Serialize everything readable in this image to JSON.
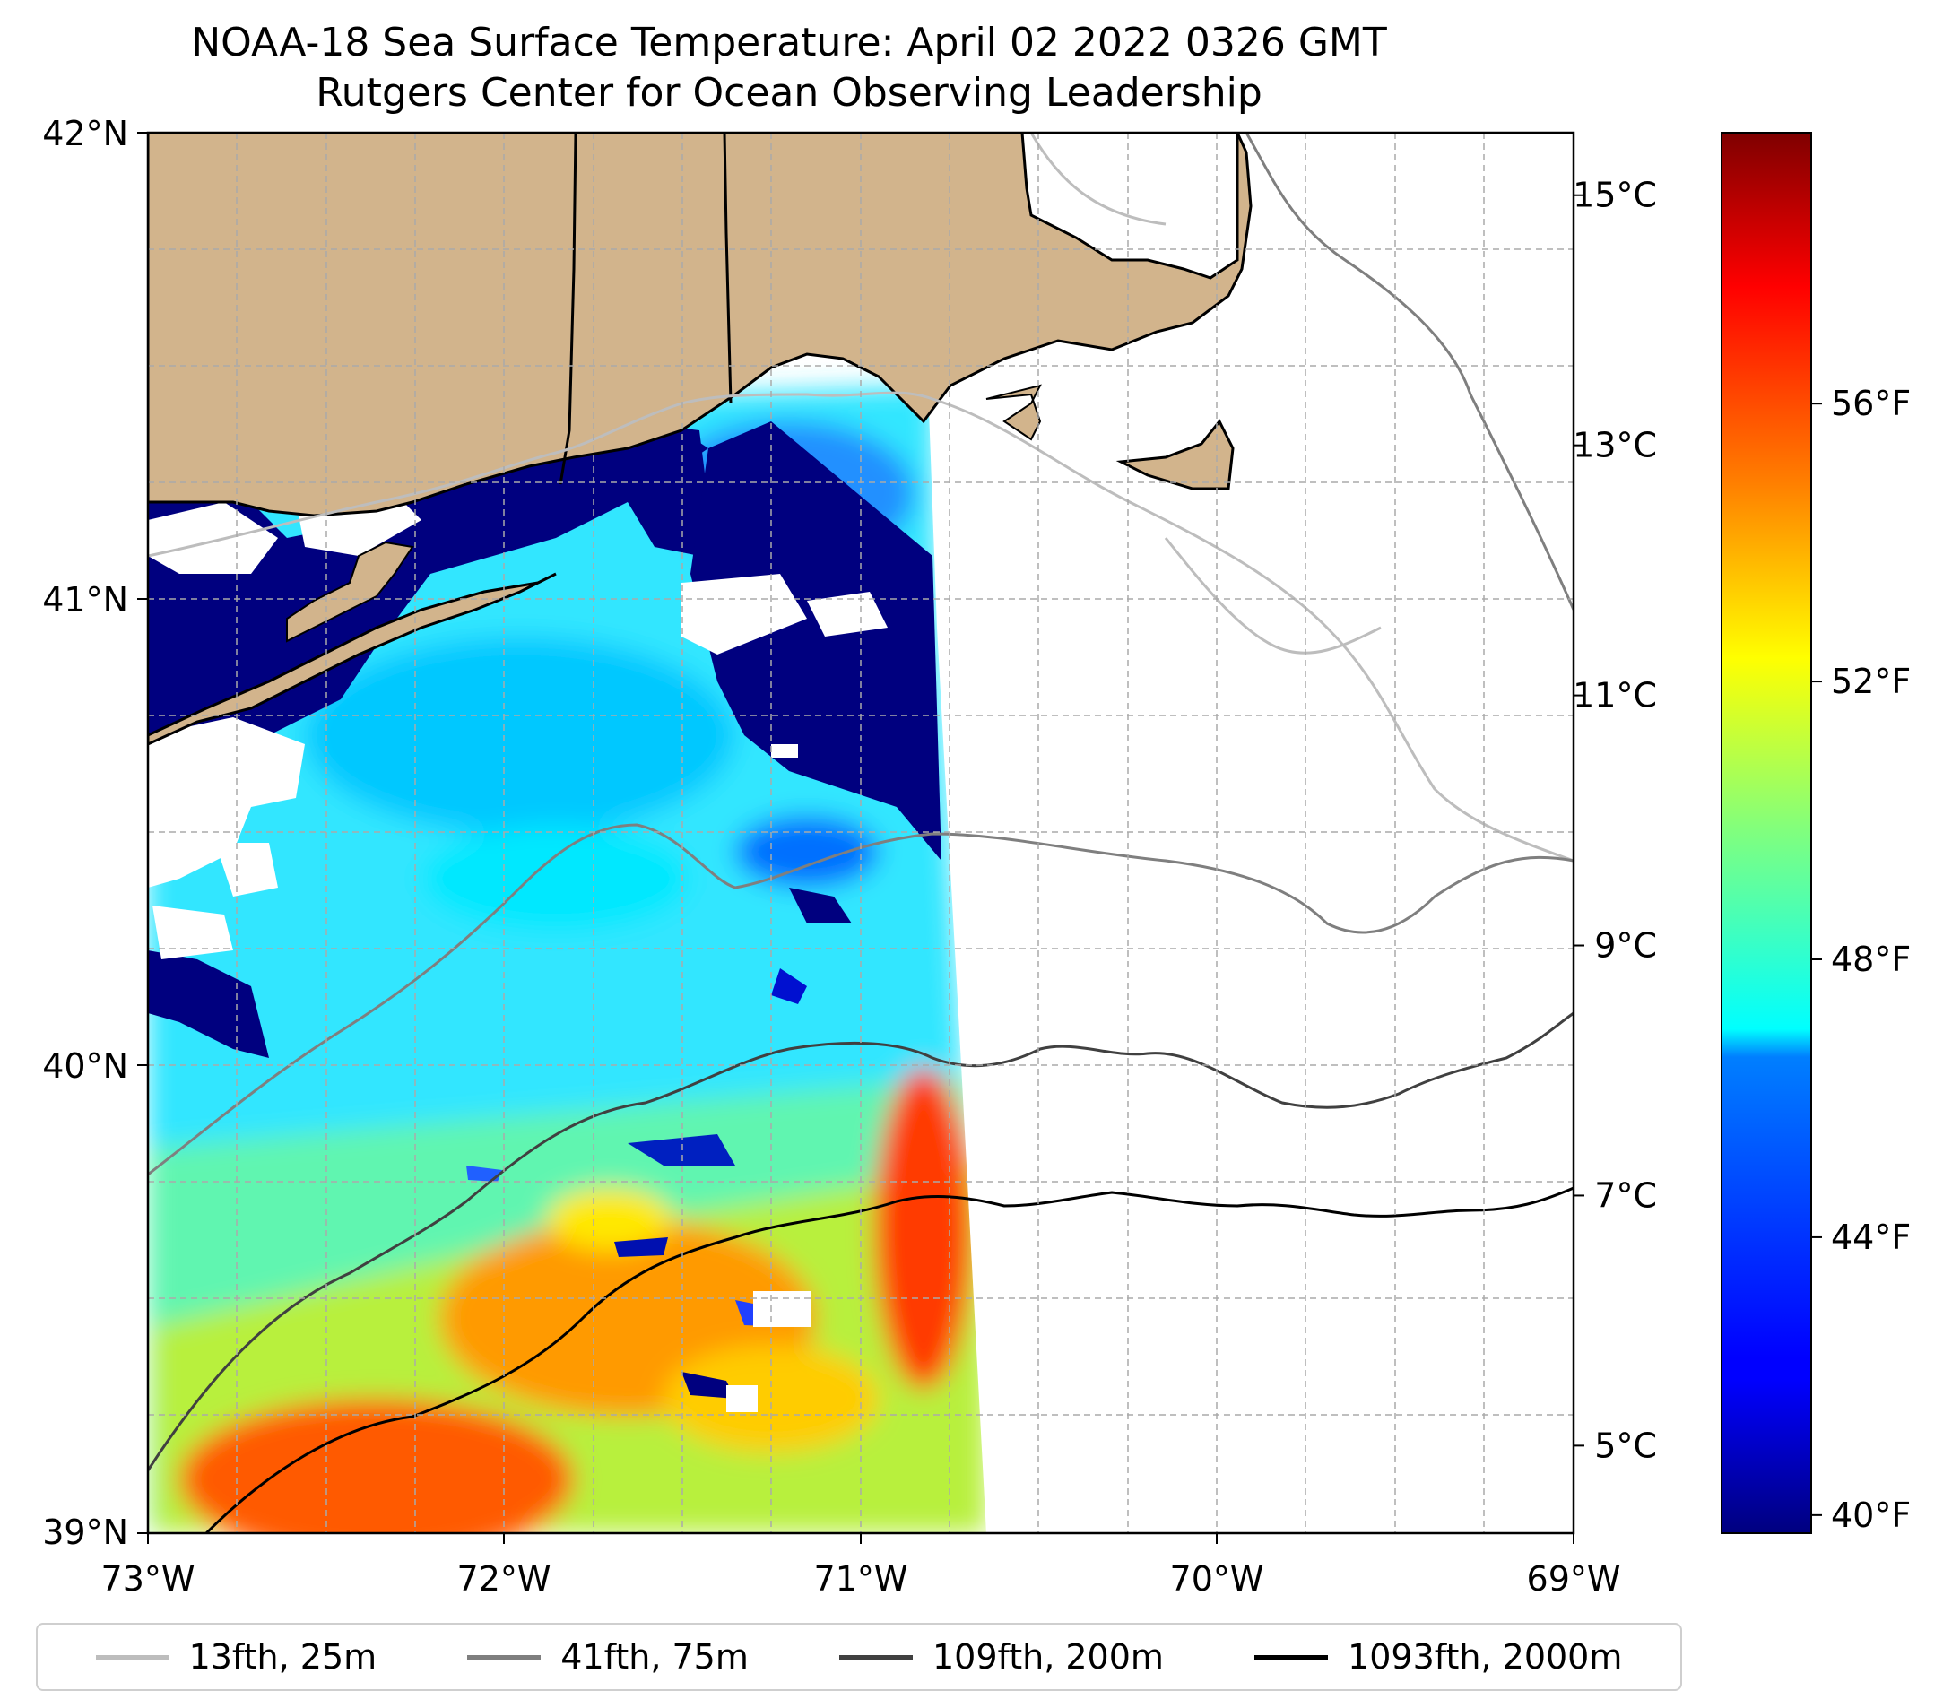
{
  "title_line1": "NOAA-18 Sea Surface Temperature: April 02 2022 0326 GMT",
  "title_line2": "Rutgers Center for Ocean Observing Leadership",
  "colors": {
    "land": "#d2b48c",
    "coast": "#000000",
    "grid": "#b0b0b0",
    "cmap": [
      "#00007f",
      "#0000ff",
      "#007fff",
      "#00ffff",
      "#7fff7f",
      "#ffff00",
      "#ff7f00",
      "#ff0000",
      "#7f0000"
    ]
  },
  "chart_data": {
    "type": "heatmap",
    "title": "NOAA-18 Sea Surface Temperature: April 02 2022 0326 GMT",
    "subtitle": "Rutgers Center for Ocean Observing Leadership",
    "lon_range": [
      -73,
      -69
    ],
    "lat_range": [
      39,
      42
    ],
    "x_ticks": [
      "73°W",
      "72°W",
      "71°W",
      "70°W",
      "69°W"
    ],
    "y_ticks": [
      "42°N",
      "41°N",
      "40°N",
      "39°N"
    ],
    "colorbar": {
      "c_range": [
        4.3,
        15.5
      ],
      "celsius_ticks": [
        {
          "value": 15,
          "label": "15°C"
        },
        {
          "value": 13,
          "label": "13°C"
        },
        {
          "value": 11,
          "label": "11°C"
        },
        {
          "value": 9,
          "label": "9°C"
        },
        {
          "value": 7,
          "label": "7°C"
        },
        {
          "value": 5,
          "label": "5°C"
        }
      ],
      "fahrenheit_ticks": [
        {
          "value": 56,
          "label": "56°F"
        },
        {
          "value": 52,
          "label": "52°F"
        },
        {
          "value": 48,
          "label": "48°F"
        },
        {
          "value": 44,
          "label": "44°F"
        },
        {
          "value": 40,
          "label": "40°F"
        }
      ]
    },
    "legend": [
      {
        "label": "13fth, 25m",
        "color": "#bdbdbd"
      },
      {
        "label": "41fth, 75m",
        "color": "#7f7f7f"
      },
      {
        "label": "109fth, 200m",
        "color": "#404040"
      },
      {
        "label": "1093fth, 2000m",
        "color": "#000000"
      }
    ]
  }
}
